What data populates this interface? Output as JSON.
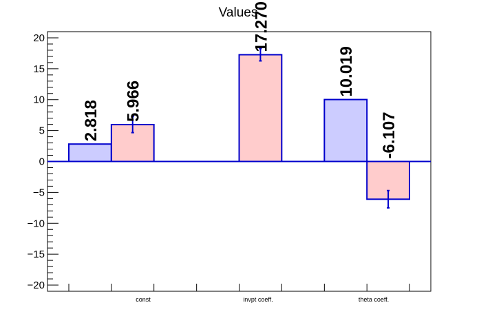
{
  "chart_data": {
    "type": "bar",
    "title": "Values",
    "xlabel": "",
    "ylabel": "",
    "ylim": [
      -21,
      21
    ],
    "yticks": [
      -20,
      -15,
      -10,
      -5,
      0,
      5,
      10,
      15,
      20
    ],
    "categories": [
      "const",
      "invpt coeff.",
      "theta coeff."
    ],
    "grid": false,
    "colors": {
      "series_a_fill": "#ccccff",
      "series_b_fill": "#ffcccc",
      "stroke": "#0000cc"
    },
    "series": [
      {
        "values": [
          2.818,
          null,
          10.019
        ],
        "labels": [
          "2.818",
          "",
          "10.019"
        ],
        "errors": [
          null,
          null,
          null
        ]
      },
      {
        "values": [
          5.966,
          17.27,
          -6.107
        ],
        "labels": [
          "5.966",
          "17.270",
          "-6.107"
        ],
        "errors": [
          1.3,
          1.0,
          1.4
        ]
      }
    ]
  }
}
